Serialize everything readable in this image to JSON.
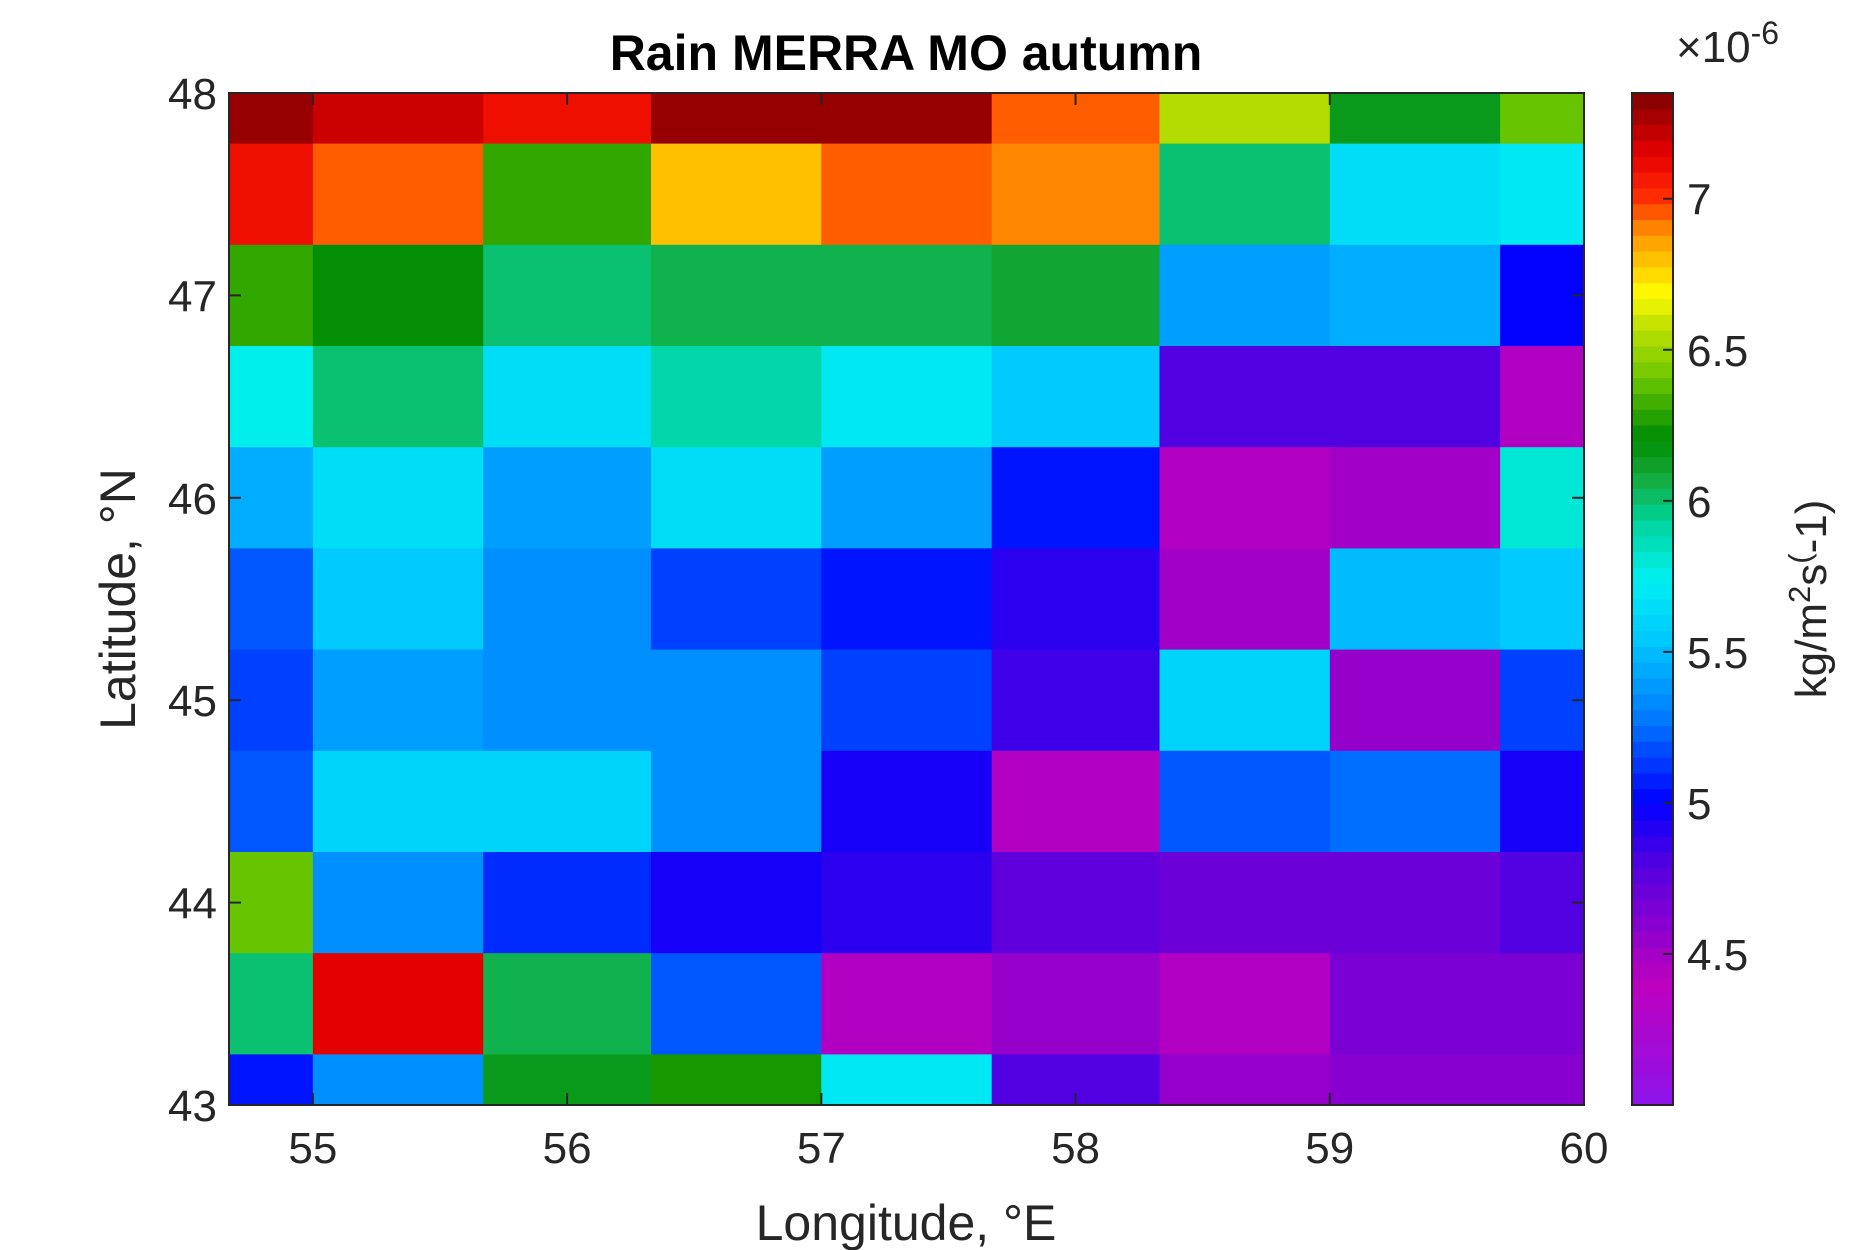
{
  "chart_data": {
    "type": "heatmap",
    "title": "Rain MERRA MO autumn",
    "xlabel": "Longitude, °E",
    "ylabel": "Latitude, °N",
    "colorbar_label": {
      "base": "kg/m",
      "sup1": "2",
      "mid": "s",
      "sup2": "(",
      "tail": "-1)"
    },
    "colorbar_exponent": {
      "prefix": "×10",
      "power": "-6"
    },
    "colorbar_range": [
      4.0,
      7.35
    ],
    "colorbar_ticks": [
      {
        "v": 4.5,
        "label": "4.5"
      },
      {
        "v": 5.0,
        "label": "5"
      },
      {
        "v": 5.5,
        "label": "5.5"
      },
      {
        "v": 6.0,
        "label": "6"
      },
      {
        "v": 6.5,
        "label": "6.5"
      },
      {
        "v": 7.0,
        "label": "7"
      }
    ],
    "colormap": "jet-like (violet-blue-cyan-green-yellow-red-darkred)",
    "xlim": [
      54.67,
      60.0
    ],
    "ylim": [
      43.0,
      48.0
    ],
    "x_ticks": [
      {
        "v": 55,
        "label": "55"
      },
      {
        "v": 56,
        "label": "56"
      },
      {
        "v": 57,
        "label": "57"
      },
      {
        "v": 58,
        "label": "58"
      },
      {
        "v": 59,
        "label": "59"
      },
      {
        "v": 60,
        "label": "60"
      }
    ],
    "y_ticks": [
      {
        "v": 43,
        "label": "43"
      },
      {
        "v": 44,
        "label": "44"
      },
      {
        "v": 45,
        "label": "45"
      },
      {
        "v": 46,
        "label": "46"
      },
      {
        "v": 47,
        "label": "47"
      },
      {
        "v": 48,
        "label": "48"
      }
    ],
    "x_edges": [
      54.67,
      55.0,
      55.67,
      56.33,
      57.0,
      57.67,
      58.33,
      59.0,
      59.67,
      60.0
    ],
    "y_edges": [
      48.0,
      47.75,
      47.25,
      46.75,
      46.25,
      45.75,
      45.25,
      44.75,
      44.25,
      43.75,
      43.25,
      43.0
    ],
    "values": [
      [
        7.3,
        7.2,
        7.1,
        7.3,
        7.3,
        6.95,
        6.55,
        6.15,
        6.4
      ],
      [
        7.1,
        6.95,
        6.3,
        6.8,
        6.95,
        6.9,
        6.0,
        5.65,
        5.7
      ],
      [
        6.3,
        6.2,
        6.0,
        6.05,
        6.05,
        6.1,
        5.4,
        5.45,
        5.0
      ],
      [
        5.75,
        6.0,
        5.65,
        5.9,
        5.7,
        5.55,
        4.8,
        4.8,
        4.45
      ],
      [
        5.45,
        5.65,
        5.4,
        5.65,
        5.4,
        5.05,
        4.45,
        4.5,
        5.8
      ],
      [
        5.2,
        5.55,
        5.35,
        5.15,
        5.05,
        4.9,
        4.5,
        5.5,
        5.55
      ],
      [
        5.15,
        5.4,
        5.35,
        5.35,
        5.15,
        4.85,
        5.6,
        4.55,
        5.15
      ],
      [
        5.2,
        5.6,
        5.6,
        5.35,
        4.95,
        4.45,
        5.2,
        5.25,
        4.95
      ],
      [
        6.4,
        5.35,
        5.1,
        4.95,
        4.9,
        4.75,
        4.7,
        4.7,
        4.8
      ],
      [
        6.0,
        7.15,
        6.05,
        5.2,
        4.45,
        4.55,
        4.45,
        4.65,
        4.65
      ],
      [
        5.05,
        5.35,
        6.15,
        6.25,
        5.7,
        4.8,
        4.55,
        4.6,
        4.6
      ]
    ]
  }
}
